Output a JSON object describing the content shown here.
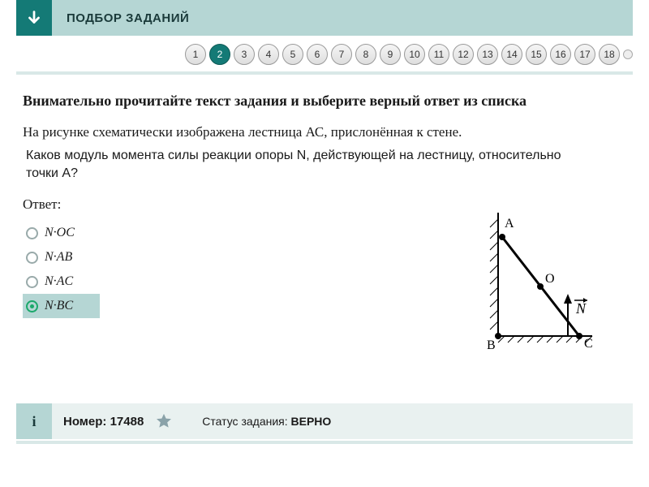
{
  "header": {
    "title": "ПОДБОР ЗАДАНИЙ"
  },
  "nav": {
    "items": [
      "1",
      "2",
      "3",
      "4",
      "5",
      "6",
      "7",
      "8",
      "9",
      "10",
      "11",
      "12",
      "13",
      "14",
      "15",
      "16",
      "17",
      "18"
    ],
    "active_index": 1
  },
  "task": {
    "instruction": "Внимательно прочитайте текст задания и выберите верный ответ из списка",
    "paragraph": "На рисунке схематически изображена лестница АС, прислонённая к стене.",
    "question": "Каков модуль момента силы реакции опоры N, действующей на лестницу, относительно точки A?",
    "answer_label": "Ответ:",
    "options": [
      {
        "label": "N·OC",
        "selected": false
      },
      {
        "label": "N·AB",
        "selected": false
      },
      {
        "label": "N·AC",
        "selected": false
      },
      {
        "label": "N·BC",
        "selected": true
      }
    ]
  },
  "diagram": {
    "labels": {
      "A": "A",
      "B": "B",
      "C": "C",
      "O": "O",
      "N": "N"
    },
    "colors": {
      "stroke": "#000000",
      "hatch": "#000000"
    }
  },
  "footer": {
    "info_glyph": "i",
    "number_label": "Номер:",
    "number_value": "17488",
    "status_label": "Статус задания:",
    "status_value": "ВЕРНО"
  }
}
